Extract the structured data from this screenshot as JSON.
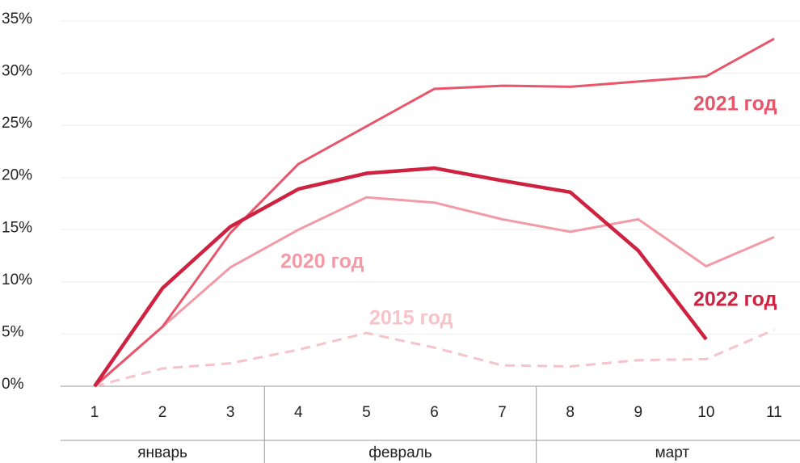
{
  "chart_data": {
    "type": "line",
    "categories": [
      "1",
      "2",
      "3",
      "4",
      "5",
      "6",
      "7",
      "8",
      "9",
      "10",
      "11"
    ],
    "groups": [
      {
        "label": "январь",
        "span": 3
      },
      {
        "label": "февраль",
        "span": 4
      },
      {
        "label": "март",
        "span": 4
      }
    ],
    "series": [
      {
        "name": "2015 год",
        "color": "#f6c3ca",
        "style": "dashed",
        "width": 3,
        "values": [
          0,
          1.7,
          2.2,
          3.5,
          5.1,
          3.7,
          2.0,
          1.9,
          2.5,
          2.6,
          5.4
        ]
      },
      {
        "name": "2020 год",
        "color": "#f29aa6",
        "style": "solid",
        "width": 3,
        "values": [
          0,
          5.7,
          11.4,
          15.0,
          18.1,
          17.6,
          16.0,
          14.8,
          16.0,
          11.5,
          14.3
        ]
      },
      {
        "name": "2021 год",
        "color": "#e8566c",
        "style": "solid",
        "width": 3,
        "values": [
          0,
          5.7,
          14.7,
          21.3,
          24.9,
          28.5,
          28.8,
          28.7,
          29.2,
          29.7,
          33.3
        ]
      },
      {
        "name": "2022 год",
        "color": "#cf2140",
        "style": "solid",
        "width": 4.5,
        "values": [
          0,
          9.4,
          15.3,
          18.9,
          20.4,
          20.9,
          19.7,
          18.6,
          13.0,
          4.5,
          null
        ]
      }
    ],
    "ylim": [
      0,
      35
    ],
    "yticks": [
      {
        "value": 0,
        "label": "0%"
      },
      {
        "value": 5,
        "label": "5%"
      },
      {
        "value": 10,
        "label": "10%"
      },
      {
        "value": 15,
        "label": "15%"
      },
      {
        "value": 20,
        "label": "20%"
      },
      {
        "value": 25,
        "label": "25%"
      },
      {
        "value": 30,
        "label": "30%"
      },
      {
        "value": 35,
        "label": "35%"
      }
    ],
    "grid": true
  }
}
